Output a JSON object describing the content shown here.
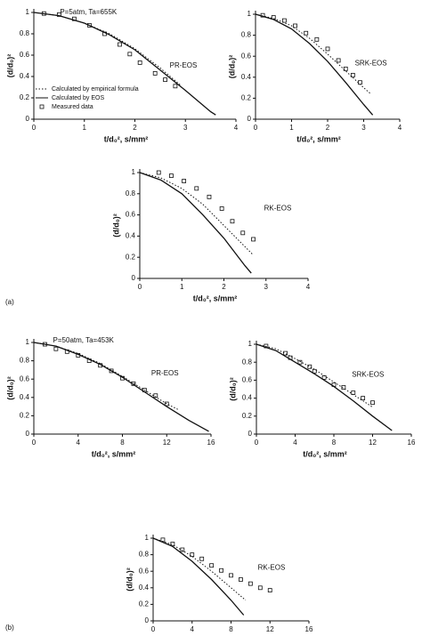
{
  "panel_labels": [
    "(a)",
    "(b)"
  ],
  "chart_data": [
    {
      "type": "line",
      "annotations": [
        "P=5atm, Ta=655K",
        "PR-EOS"
      ],
      "x_label": "t/d₀², s/mm²",
      "y_label": "(d/d₀)²",
      "xlim": [
        0,
        4
      ],
      "xticks": [
        0,
        1,
        2,
        3,
        4
      ],
      "ylim": [
        0,
        1
      ],
      "yticks": [
        0,
        0.2,
        0.4,
        0.6,
        0.8,
        1
      ],
      "legend": "lower left",
      "series": [
        {
          "name": "Calculated by empirical formula",
          "mode": "line",
          "dash": "dotted",
          "color": "#111",
          "x": [
            0,
            0.5,
            1,
            1.5,
            2,
            2.5,
            2.9
          ],
          "values": [
            1,
            0.97,
            0.9,
            0.8,
            0.66,
            0.48,
            0.32
          ]
        },
        {
          "name": "Calculated by EOS",
          "mode": "line",
          "dash": "solid",
          "color": "#111",
          "x": [
            0,
            0.5,
            1,
            1.5,
            2,
            2.5,
            3,
            3.5,
            3.6
          ],
          "values": [
            1,
            0.97,
            0.9,
            0.79,
            0.65,
            0.46,
            0.27,
            0.07,
            0.04
          ]
        },
        {
          "name": "Measured data",
          "mode": "markers",
          "color": "#111",
          "x": [
            0.2,
            0.5,
            0.8,
            1.1,
            1.4,
            1.7,
            1.9,
            2.1,
            2.4,
            2.6,
            2.8
          ],
          "values": [
            0.99,
            0.98,
            0.94,
            0.88,
            0.8,
            0.7,
            0.61,
            0.53,
            0.43,
            0.37,
            0.31
          ]
        }
      ]
    },
    {
      "type": "line",
      "annotations": [
        "SRK-EOS"
      ],
      "x_label": "t/d₀², s/mm²",
      "y_label": "(d/d₀)²",
      "xlim": [
        0,
        4
      ],
      "xticks": [
        0,
        1,
        2,
        3,
        4
      ],
      "ylim": [
        0,
        1
      ],
      "yticks": [
        0,
        0.2,
        0.4,
        0.6,
        0.8,
        1
      ],
      "series": [
        {
          "mode": "line",
          "dash": "dotted",
          "color": "#111",
          "x": [
            0,
            0.5,
            1,
            1.5,
            2,
            2.5,
            3,
            3.2
          ],
          "values": [
            1,
            0.96,
            0.89,
            0.77,
            0.62,
            0.46,
            0.3,
            0.24
          ]
        },
        {
          "mode": "line",
          "dash": "solid",
          "color": "#111",
          "x": [
            0,
            0.5,
            1,
            1.5,
            2,
            2.5,
            3,
            3.25
          ],
          "values": [
            1,
            0.95,
            0.86,
            0.72,
            0.55,
            0.35,
            0.14,
            0.04
          ]
        },
        {
          "mode": "markers",
          "color": "#111",
          "x": [
            0.2,
            0.5,
            0.8,
            1.1,
            1.4,
            1.7,
            2,
            2.3,
            2.5,
            2.7,
            2.9
          ],
          "values": [
            0.99,
            0.97,
            0.94,
            0.89,
            0.82,
            0.76,
            0.67,
            0.56,
            0.48,
            0.42,
            0.35
          ]
        }
      ]
    },
    {
      "type": "line",
      "annotations": [
        "RK-EOS"
      ],
      "x_label": "t/d₀², s/mm²",
      "y_label": "(d/d₀)²",
      "xlim": [
        0,
        4
      ],
      "xticks": [
        0,
        1,
        2,
        3,
        4
      ],
      "ylim": [
        0,
        1
      ],
      "yticks": [
        0,
        0.2,
        0.4,
        0.6,
        0.8,
        1
      ],
      "series": [
        {
          "mode": "line",
          "dash": "dotted",
          "color": "#111",
          "x": [
            0,
            0.5,
            1,
            1.5,
            2,
            2.5,
            2.7
          ],
          "values": [
            1,
            0.95,
            0.85,
            0.7,
            0.5,
            0.3,
            0.22
          ]
        },
        {
          "mode": "line",
          "dash": "solid",
          "color": "#111",
          "x": [
            0,
            0.5,
            1,
            1.5,
            2,
            2.5,
            2.65
          ],
          "values": [
            1,
            0.93,
            0.8,
            0.6,
            0.38,
            0.12,
            0.05
          ]
        },
        {
          "mode": "markers",
          "color": "#111",
          "x": [
            0.45,
            0.75,
            1.05,
            1.35,
            1.65,
            1.95,
            2.2,
            2.45,
            2.7
          ],
          "values": [
            1,
            0.97,
            0.92,
            0.85,
            0.77,
            0.66,
            0.54,
            0.43,
            0.37
          ]
        }
      ]
    },
    {
      "type": "line",
      "annotations": [
        "P=50atm, Ta=453K",
        "PR-EOS"
      ],
      "x_label": "t/d₀², s/mm²",
      "y_label": "(d/d₀)²",
      "xlim": [
        0,
        16
      ],
      "xticks": [
        0,
        4,
        8,
        12,
        16
      ],
      "ylim": [
        0,
        1
      ],
      "yticks": [
        0,
        0.2,
        0.4,
        0.6,
        0.8,
        1
      ],
      "legend": "lower left",
      "series": [
        {
          "name": "Calculated by empirical formula",
          "mode": "line",
          "dash": "dotted",
          "color": "#111",
          "x": [
            0,
            2,
            4,
            6,
            8,
            10,
            12,
            13
          ],
          "values": [
            1,
            0.96,
            0.88,
            0.77,
            0.63,
            0.48,
            0.33,
            0.27
          ]
        },
        {
          "name": "Calculated by EOS",
          "mode": "line",
          "dash": "solid",
          "color": "#111",
          "x": [
            0,
            2,
            4,
            6,
            8,
            10,
            12,
            14,
            15.8
          ],
          "values": [
            1,
            0.96,
            0.87,
            0.76,
            0.62,
            0.46,
            0.3,
            0.15,
            0.03
          ]
        },
        {
          "name": "Measured data",
          "mode": "markers",
          "color": "#111",
          "x": [
            1,
            2,
            3,
            4,
            5,
            6,
            7,
            8,
            9,
            10,
            11,
            12
          ],
          "values": [
            0.98,
            0.93,
            0.9,
            0.86,
            0.8,
            0.75,
            0.69,
            0.61,
            0.55,
            0.48,
            0.42,
            0.33
          ]
        }
      ]
    },
    {
      "type": "line",
      "annotations": [
        "SRK-EOS"
      ],
      "x_label": "t/d₀², s/mm²",
      "y_label": "(d/d₀)²",
      "xlim": [
        0,
        16
      ],
      "xticks": [
        0,
        4,
        8,
        12,
        16
      ],
      "ylim": [
        0,
        1
      ],
      "yticks": [
        0,
        0.2,
        0.4,
        0.6,
        0.8,
        1
      ],
      "series": [
        {
          "mode": "line",
          "dash": "dotted",
          "color": "#111",
          "x": [
            0,
            2,
            4,
            6,
            8,
            10,
            12
          ],
          "values": [
            1,
            0.95,
            0.84,
            0.72,
            0.58,
            0.44,
            0.3
          ]
        },
        {
          "mode": "line",
          "dash": "solid",
          "color": "#111",
          "x": [
            0,
            2,
            4,
            6,
            8,
            10,
            12,
            14
          ],
          "values": [
            1,
            0.93,
            0.8,
            0.67,
            0.53,
            0.37,
            0.2,
            0.04
          ]
        },
        {
          "mode": "markers",
          "color": "#111",
          "x": [
            1,
            3,
            3.5,
            4.5,
            5.5,
            6,
            7,
            8,
            9,
            10,
            11,
            12
          ],
          "values": [
            0.98,
            0.9,
            0.85,
            0.8,
            0.75,
            0.7,
            0.63,
            0.55,
            0.52,
            0.46,
            0.4,
            0.35
          ]
        }
      ]
    },
    {
      "type": "line",
      "annotations": [
        "RK-EOS"
      ],
      "x_label": "t/d₀², s/mm²",
      "y_label": "(d/d₀)²",
      "xlim": [
        0,
        16
      ],
      "xticks": [
        0,
        4,
        8,
        12,
        16
      ],
      "ylim": [
        0,
        1
      ],
      "yticks": [
        0,
        0.2,
        0.4,
        0.6,
        0.8,
        1
      ],
      "series": [
        {
          "mode": "line",
          "dash": "dotted",
          "color": "#111",
          "x": [
            0,
            2,
            4,
            6,
            8,
            9.5
          ],
          "values": [
            1,
            0.92,
            0.78,
            0.6,
            0.4,
            0.25
          ]
        },
        {
          "mode": "line",
          "dash": "solid",
          "color": "#111",
          "x": [
            0,
            2,
            4,
            6,
            8,
            9.3
          ],
          "values": [
            1,
            0.9,
            0.72,
            0.5,
            0.25,
            0.07
          ]
        },
        {
          "mode": "markers",
          "color": "#111",
          "x": [
            1,
            2,
            3,
            4,
            5,
            6,
            7,
            8,
            9,
            10,
            11,
            12
          ],
          "values": [
            0.98,
            0.93,
            0.86,
            0.8,
            0.75,
            0.67,
            0.61,
            0.55,
            0.5,
            0.45,
            0.4,
            0.37
          ]
        }
      ]
    }
  ]
}
